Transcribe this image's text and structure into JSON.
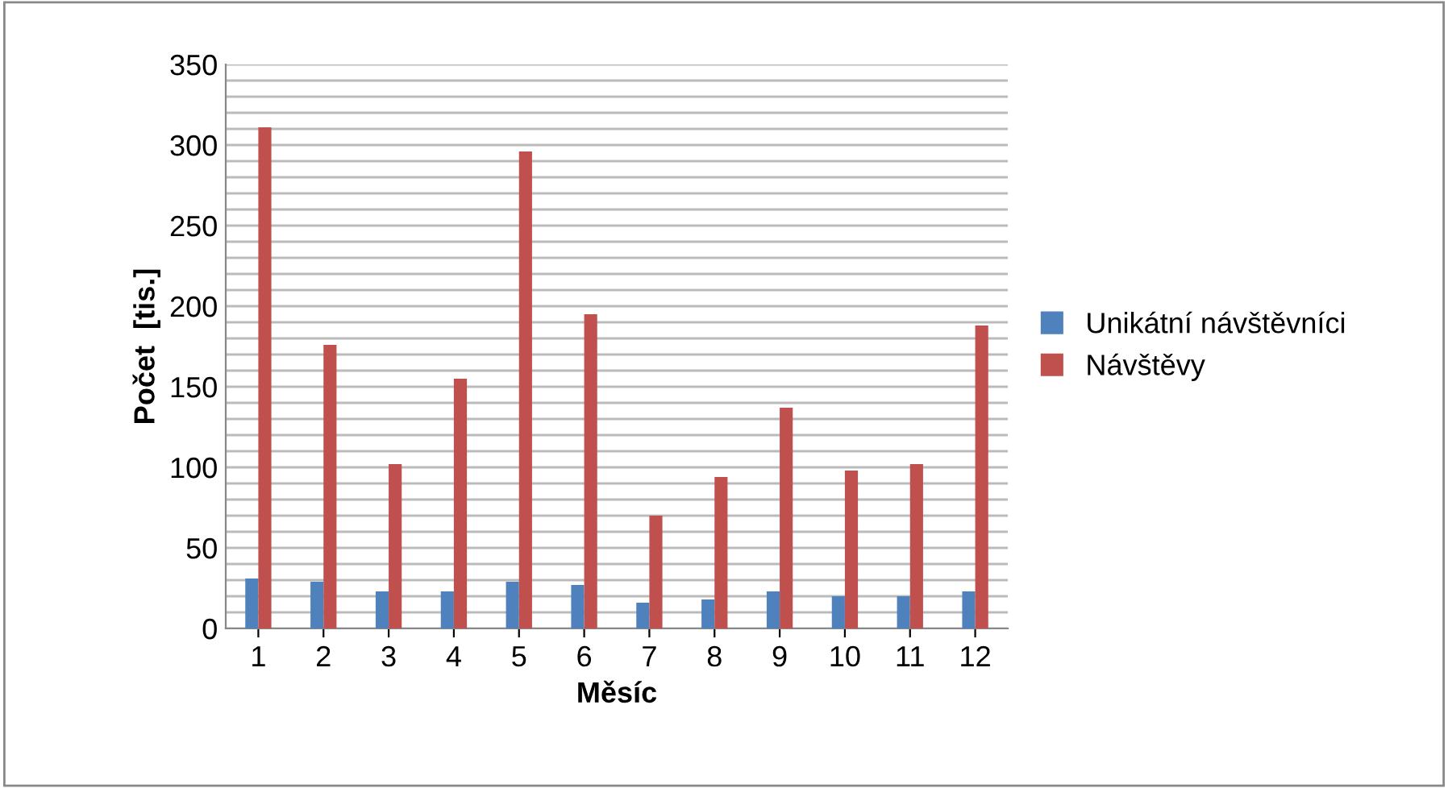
{
  "chart_data": {
    "type": "bar",
    "xlabel": "Měsíc",
    "ylabel": "Počet  [tis.]",
    "categories": [
      "1",
      "2",
      "3",
      "4",
      "5",
      "6",
      "7",
      "8",
      "9",
      "10",
      "11",
      "12"
    ],
    "series": [
      {
        "name": "Unikátní návštěvníci",
        "color": "#4f81bd",
        "values": [
          31,
          29,
          23,
          23,
          29,
          27,
          16,
          18,
          23,
          20,
          20,
          23
        ]
      },
      {
        "name": "Návštěvy",
        "color": "#c0504d",
        "values": [
          311,
          176,
          102,
          155,
          296,
          195,
          70,
          94,
          137,
          98,
          102,
          188
        ]
      }
    ],
    "ylim": [
      0,
      350
    ],
    "yticks": [
      0,
      {
        "value": 10,
        "label": null
      },
      {
        "value": 20,
        "label": null
      },
      {
        "value": 30,
        "label": null
      },
      {
        "value": 40,
        "label": null
      },
      50,
      {
        "value": 60,
        "label": null
      },
      {
        "value": 70,
        "label": null
      },
      {
        "value": 80,
        "label": null
      },
      {
        "value": 90,
        "label": null
      },
      100,
      {
        "value": 110,
        "label": null
      },
      {
        "value": 120,
        "label": null
      },
      {
        "value": 130,
        "label": null
      },
      {
        "value": 140,
        "label": null
      },
      150,
      {
        "value": 160,
        "label": null
      },
      {
        "value": 170,
        "label": null
      },
      {
        "value": 180,
        "label": null
      },
      {
        "value": 190,
        "label": null
      },
      200,
      {
        "value": 210,
        "label": null
      },
      {
        "value": 220,
        "label": null
      },
      {
        "value": 230,
        "label": null
      },
      {
        "value": 240,
        "label": null
      },
      250,
      {
        "value": 260,
        "label": null
      },
      {
        "value": 270,
        "label": null
      },
      {
        "value": 280,
        "label": null
      },
      {
        "value": 290,
        "label": null
      },
      300,
      {
        "value": 310,
        "label": null
      },
      {
        "value": 320,
        "label": null
      },
      {
        "value": 330,
        "label": null
      },
      {
        "value": 340,
        "label": null
      },
      350
    ],
    "grid": "y",
    "legend": "right"
  }
}
